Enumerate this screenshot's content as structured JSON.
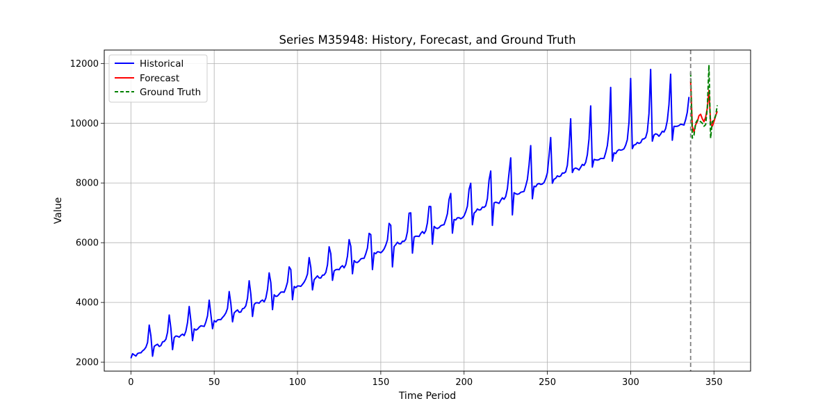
{
  "chart_data": {
    "type": "line",
    "title": "Series M35948: History, Forecast, and Ground Truth",
    "xlabel": "Time Period",
    "ylabel": "Value",
    "xlim": [
      -16,
      372
    ],
    "ylim": [
      1700,
      12450
    ],
    "xticks": [
      0,
      50,
      100,
      150,
      200,
      250,
      300,
      350
    ],
    "yticks": [
      2000,
      4000,
      6000,
      8000,
      10000,
      12000
    ],
    "grid": true,
    "legend_position": "top-left",
    "forecast_start_marker": 336,
    "trend": {
      "start": 2150,
      "slope": 23.5
    },
    "seasonal_pattern": [
      0,
      60,
      60,
      40,
      50,
      20,
      30,
      60,
      40,
      130,
      330,
      860
    ],
    "series": [
      {
        "name": "Historical",
        "color": "#0000ff",
        "style": "solid",
        "x_range": [
          0,
          335
        ],
        "peaks": [
          [
            12,
            2880
          ],
          [
            24,
            3130
          ],
          [
            36,
            3380
          ],
          [
            48,
            3600
          ],
          [
            60,
            3960
          ],
          [
            72,
            4270
          ],
          [
            84,
            4660
          ],
          [
            96,
            5100
          ],
          [
            108,
            5170
          ],
          [
            120,
            5630
          ],
          [
            132,
            5880
          ],
          [
            144,
            6270
          ],
          [
            156,
            6580
          ],
          [
            168,
            7000
          ],
          [
            180,
            7210
          ],
          [
            192,
            7650
          ],
          [
            204,
            7990
          ],
          [
            216,
            8400
          ],
          [
            228,
            8840
          ],
          [
            240,
            9250
          ],
          [
            252,
            9520
          ],
          [
            264,
            10150
          ],
          [
            276,
            10580
          ],
          [
            288,
            11200
          ],
          [
            300,
            11500
          ],
          [
            312,
            11800
          ],
          [
            324,
            11640
          ]
        ],
        "troughs": [
          [
            0,
            2130
          ],
          [
            13,
            2200
          ],
          [
            25,
            2420
          ],
          [
            37,
            2720
          ],
          [
            49,
            3120
          ],
          [
            61,
            3350
          ],
          [
            73,
            3530
          ],
          [
            85,
            3760
          ],
          [
            97,
            4090
          ],
          [
            109,
            4420
          ],
          [
            121,
            4740
          ],
          [
            133,
            4960
          ],
          [
            145,
            5100
          ],
          [
            157,
            5190
          ],
          [
            169,
            5650
          ],
          [
            181,
            5950
          ],
          [
            193,
            6320
          ],
          [
            205,
            6600
          ],
          [
            217,
            6580
          ],
          [
            229,
            6930
          ],
          [
            241,
            7470
          ],
          [
            253,
            7990
          ],
          [
            265,
            8350
          ],
          [
            277,
            8530
          ],
          [
            289,
            8730
          ],
          [
            301,
            9150
          ],
          [
            313,
            9400
          ],
          [
            325,
            9430
          ]
        ]
      },
      {
        "name": "Forecast",
        "color": "#ff0000",
        "style": "solid",
        "x": [
          336,
          337,
          338,
          339,
          340,
          341,
          342,
          343,
          344,
          345,
          346,
          347,
          348,
          349,
          350,
          351,
          352
        ],
        "y": [
          11400,
          9900,
          9700,
          9950,
          10050,
          10250,
          10300,
          10150,
          10050,
          10200,
          10500,
          11100,
          10000,
          9900,
          10050,
          10250,
          10400
        ]
      },
      {
        "name": "Ground Truth",
        "color": "#008000",
        "style": "dashed",
        "x": [
          336,
          337,
          338,
          339,
          340,
          341,
          342,
          343,
          344,
          345,
          346,
          347,
          348,
          349,
          350,
          351,
          352
        ],
        "y": [
          11700,
          9500,
          9600,
          10000,
          10100,
          10100,
          10050,
          10000,
          9900,
          9950,
          10500,
          11950,
          9500,
          10050,
          10100,
          10250,
          10600
        ]
      }
    ]
  }
}
